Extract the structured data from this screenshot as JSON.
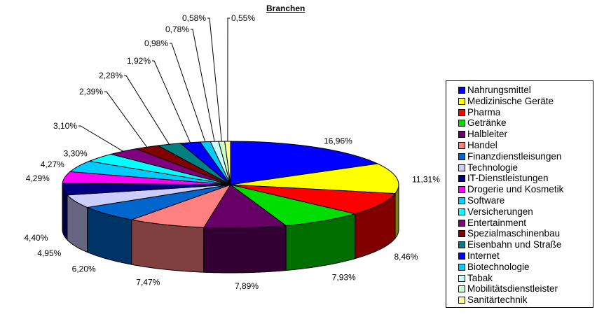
{
  "chart_data": {
    "type": "pie",
    "title": "Branchen",
    "legend_position": "right",
    "slices": [
      {
        "name": "Nahrungsmittel",
        "value": 16.96,
        "label": "16,96%",
        "color": "#0000FF"
      },
      {
        "name": "Medizinische Geräte",
        "value": 11.31,
        "label": "11,31%",
        "color": "#FFFF00"
      },
      {
        "name": "Pharma",
        "value": 8.46,
        "label": "8,46%",
        "color": "#FF0000"
      },
      {
        "name": "Getränke",
        "value": 7.93,
        "label": "7,93%",
        "color": "#00DD00"
      },
      {
        "name": "Halbleiter",
        "value": 7.89,
        "label": "7,89%",
        "color": "#660066"
      },
      {
        "name": "Handel",
        "value": 7.47,
        "label": "7,47%",
        "color": "#FF8080"
      },
      {
        "name": "Finanzdienstleisungen",
        "value": 6.2,
        "label": "6,20%",
        "color": "#0066CC"
      },
      {
        "name": "Technologie",
        "value": 4.95,
        "label": "4,95%",
        "color": "#CCCCFF"
      },
      {
        "name": "IT-Dienstleistungen",
        "value": 4.4,
        "label": "4,40%",
        "color": "#000080"
      },
      {
        "name": "Drogerie und Kosmetik",
        "value": 4.29,
        "label": "4,29%",
        "color": "#FF00FF"
      },
      {
        "name": "Software",
        "value": 4.27,
        "label": "4,27%",
        "color": "#00CCFF"
      },
      {
        "name": "Versicherungen",
        "value": 3.3,
        "label": "3,30%",
        "color": "#00FFFF"
      },
      {
        "name": "Entertainment",
        "value": 3.1,
        "label": "3,10%",
        "color": "#800080"
      },
      {
        "name": "Spezialmaschinenbau",
        "value": 2.39,
        "label": "2,39%",
        "color": "#800000"
      },
      {
        "name": "Eisenbahn und Straße",
        "value": 2.28,
        "label": "2,28%",
        "color": "#008080"
      },
      {
        "name": "Internet",
        "value": 1.92,
        "label": "1,92%",
        "color": "#0000FF"
      },
      {
        "name": "Biotechnologie",
        "value": 0.98,
        "label": "0,98%",
        "color": "#00CCFF"
      },
      {
        "name": "Tabak",
        "value": 0.78,
        "label": "0,78%",
        "color": "#CCFFFF"
      },
      {
        "name": "Mobilitätsdienstleister",
        "value": 0.58,
        "label": "0,58%",
        "color": "#CCFFCC"
      },
      {
        "name": "Sanitärtechnik",
        "value": 0.55,
        "label": "0,55%",
        "color": "#FFFF99"
      }
    ]
  }
}
